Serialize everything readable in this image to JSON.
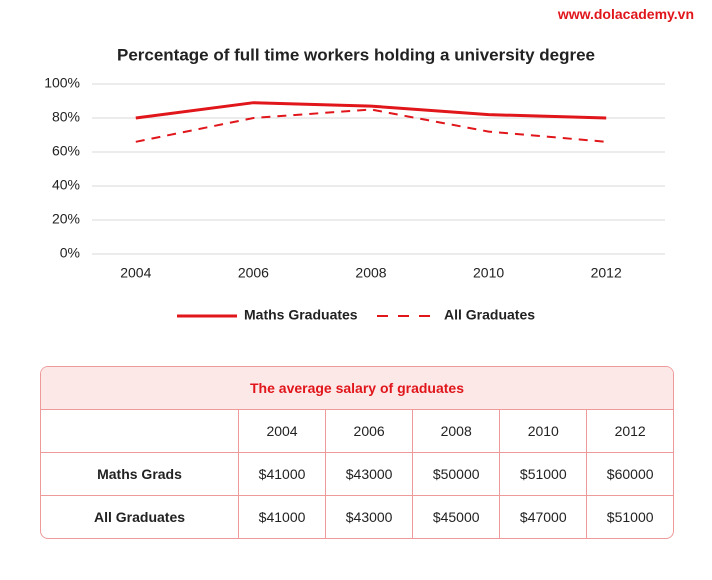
{
  "site": "www.dolacademy.vn",
  "chart_data": {
    "type": "line",
    "title": "Percentage of full time workers holding a university degree",
    "categories": [
      "2004",
      "2006",
      "2008",
      "2010",
      "2012"
    ],
    "series": [
      {
        "name": "Maths Graduates",
        "color": "#e0161b",
        "line_style": "solid",
        "values": [
          80,
          89,
          87,
          82,
          80
        ]
      },
      {
        "name": "All Graduates",
        "color": "#e0161b",
        "line_style": "dashed",
        "values": [
          66,
          80,
          85,
          72,
          66
        ]
      }
    ],
    "ylim": [
      0,
      100
    ],
    "yticks": [
      {
        "value": 0,
        "label": "0%"
      },
      {
        "value": 20,
        "label": "20%"
      },
      {
        "value": 40,
        "label": "40%"
      },
      {
        "value": 60,
        "label": "60%"
      },
      {
        "value": 80,
        "label": "80%"
      },
      {
        "value": 100,
        "label": "100%"
      }
    ],
    "grid": true,
    "legend": "bottom"
  },
  "table": {
    "title": "The average salary of graduates",
    "columns": [
      "2004",
      "2006",
      "2008",
      "2010",
      "2012"
    ],
    "rows": [
      {
        "label": "Maths Grads",
        "cells": [
          "$41000",
          "$43000",
          "$50000",
          "$51000",
          "$60000"
        ]
      },
      {
        "label": "All Graduates",
        "cells": [
          "$41000",
          "$43000",
          "$45000",
          "$47000",
          "$51000"
        ]
      }
    ]
  }
}
